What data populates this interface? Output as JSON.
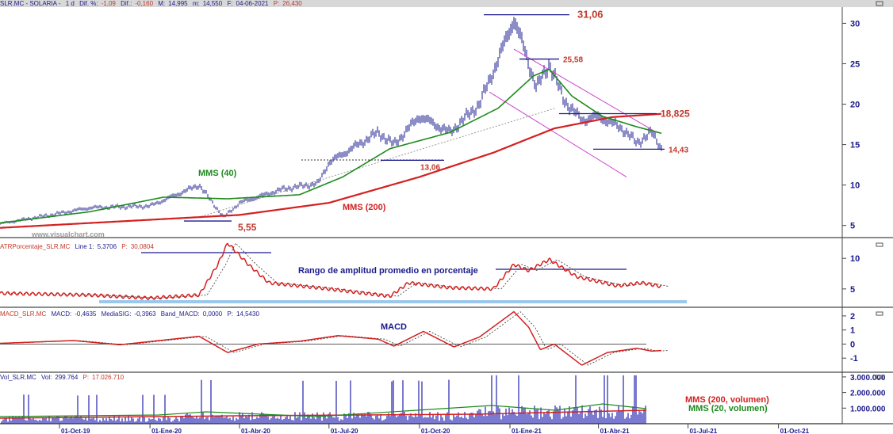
{
  "header": {
    "symbol": "SLR.MC - SOLARIA -",
    "period": "1 d",
    "dif_pct_label": "Dif. %:",
    "dif_pct": "-1,09",
    "dif_label": "Dif.:",
    "dif": "-0,160",
    "max_label": "M:",
    "max": "14,995",
    "min_label": "m:",
    "min": "14,550",
    "date_label": "F:",
    "date": "04-06-2021",
    "price_label": "P:",
    "price": "26,430"
  },
  "panels": {
    "atr": {
      "name": "ATRPorcentaje_SLR.MC",
      "line_label": "Line 1:",
      "line": "5,3706",
      "p_label": "P:",
      "p": "30,0804"
    },
    "macd": {
      "name": "MACD_SLR.MC",
      "macd_label": "MACD:",
      "macd": "-0,4635",
      "sig_label": "MediaSIG:",
      "sig": "-0,3963",
      "band_label": "Band_MACD:",
      "band": "0,0000",
      "p_label": "P:",
      "p": "14,5430"
    },
    "vol": {
      "name": "Vol_SLR.MC",
      "vol_label": "Vol:",
      "vol": "299.764",
      "p_label": "P:",
      "p": "17.026.710"
    }
  },
  "watermark": "www.visualchart.com",
  "colors": {
    "price": "#1a1a8c",
    "mms40": "#1e8a1e",
    "mms200": "#d42020",
    "annot": "#c0392b",
    "channel": "#cc44cc"
  },
  "chart_data": [
    {
      "type": "line",
      "title": "SOLARIA price",
      "ylim": [
        3.5,
        32
      ],
      "yticks": [
        "5",
        "10",
        "15",
        "20",
        "25",
        "30"
      ],
      "ytick_values": [
        5,
        10,
        15,
        20,
        25,
        30
      ],
      "xticks": [
        "01-Oct-19",
        "01-Ene-20",
        "01-Abr-20",
        "01-Jul-20",
        "01-Oct-20",
        "01-Ene-21",
        "01-Abr-21",
        "01-Jul-21",
        "01-Oct-21"
      ],
      "xtick_dates": [
        "2019-10-01",
        "2020-01-01",
        "2020-04-01",
        "2020-07-01",
        "2020-10-01",
        "2021-01-01",
        "2021-04-01",
        "2021-07-01",
        "2021-10-01"
      ],
      "price": [
        [
          "2019-08-01",
          5.2
        ],
        [
          "2019-10-01",
          6.5
        ],
        [
          "2019-11-01",
          7.2
        ],
        [
          "2020-01-01",
          7.4
        ],
        [
          "2020-02-20",
          10.0
        ],
        [
          "2020-03-16",
          6.0
        ],
        [
          "2020-04-01",
          7.8
        ],
        [
          "2020-05-15",
          9.5
        ],
        [
          "2020-06-20",
          10.2
        ],
        [
          "2020-07-01",
          12.8
        ],
        [
          "2020-08-20",
          16.5
        ],
        [
          "2020-09-05",
          15.0
        ],
        [
          "2020-10-01",
          18.5
        ],
        [
          "2020-11-01",
          16.5
        ],
        [
          "2020-12-01",
          20.0
        ],
        [
          "2020-12-20",
          25.5
        ],
        [
          "2021-01-05",
          30.5
        ],
        [
          "2021-01-15",
          27.0
        ],
        [
          "2021-01-28",
          22.0
        ],
        [
          "2021-02-10",
          25.0
        ],
        [
          "2021-02-25",
          20.5
        ],
        [
          "2021-03-15",
          18.0
        ],
        [
          "2021-04-01",
          18.5
        ],
        [
          "2021-04-25",
          17.0
        ],
        [
          "2021-05-10",
          15.2
        ],
        [
          "2021-05-25",
          16.5
        ],
        [
          "2021-06-04",
          14.6
        ]
      ],
      "mms40": [
        [
          "2019-08-01",
          5.3
        ],
        [
          "2019-11-01",
          6.7
        ],
        [
          "2020-01-15",
          8.5
        ],
        [
          "2020-03-20",
          8.3
        ],
        [
          "2020-06-01",
          8.8
        ],
        [
          "2020-07-15",
          11.0
        ],
        [
          "2020-09-01",
          14.5
        ],
        [
          "2020-11-01",
          16.5
        ],
        [
          "2020-12-20",
          19.5
        ],
        [
          "2021-01-25",
          23.5
        ],
        [
          "2021-02-10",
          24.3
        ],
        [
          "2021-03-05",
          21.0
        ],
        [
          "2021-04-05",
          18.5
        ],
        [
          "2021-05-10",
          17.2
        ],
        [
          "2021-06-04",
          16.4
        ]
      ],
      "mms200": [
        [
          "2019-08-01",
          4.7
        ],
        [
          "2019-12-01",
          5.5
        ],
        [
          "2020-04-01",
          6.3
        ],
        [
          "2020-07-01",
          7.8
        ],
        [
          "2020-10-01",
          11.0
        ],
        [
          "2020-12-15",
          14.0
        ],
        [
          "2021-02-15",
          17.0
        ],
        [
          "2021-04-15",
          18.4
        ],
        [
          "2021-06-04",
          18.8
        ]
      ],
      "levels": [
        {
          "label": "31,06",
          "value": 31.06
        },
        {
          "label": "25,58",
          "value": 25.58
        },
        {
          "label": "18,825",
          "value": 18.825
        },
        {
          "label": "14,43",
          "value": 14.43
        },
        {
          "label": "13,06",
          "value": 13.06
        },
        {
          "label": "5,55",
          "value": 5.55
        }
      ],
      "labels": {
        "mms40": "MMS (40)",
        "mms200": "MMS (200)"
      }
    },
    {
      "type": "line",
      "title": "Rango de amplitud promedio en porcentaje",
      "ylim": [
        2,
        13
      ],
      "yticks": [
        "5",
        "10"
      ],
      "ytick_values": [
        5,
        10
      ],
      "series": [
        [
          "2019-08-01",
          4.3
        ],
        [
          "2019-11-01",
          4.0
        ],
        [
          "2020-01-01",
          3.5
        ],
        [
          "2020-02-20",
          4.0
        ],
        [
          "2020-03-10",
          9.0
        ],
        [
          "2020-03-20",
          12.5
        ],
        [
          "2020-04-10",
          9.0
        ],
        [
          "2020-05-01",
          6.0
        ],
        [
          "2020-07-01",
          5.0
        ],
        [
          "2020-09-01",
          3.8
        ],
        [
          "2020-09-20",
          6.0
        ],
        [
          "2020-11-01",
          5.2
        ],
        [
          "2020-12-15",
          5.0
        ],
        [
          "2021-01-05",
          9.0
        ],
        [
          "2021-01-20",
          8.0
        ],
        [
          "2021-02-10",
          9.8
        ],
        [
          "2021-03-10",
          7.0
        ],
        [
          "2021-04-20",
          5.5
        ],
        [
          "2021-05-15",
          6.0
        ],
        [
          "2021-06-04",
          5.4
        ]
      ]
    },
    {
      "type": "line",
      "title": "MACD",
      "ylim": [
        -2,
        2.5
      ],
      "yticks": [
        "-1",
        "0",
        "1",
        "2"
      ],
      "ytick_values": [
        -1,
        0,
        1,
        2
      ],
      "series": [
        [
          "2019-08-01",
          0.05
        ],
        [
          "2019-10-15",
          0.25
        ],
        [
          "2019-12-01",
          -0.05
        ],
        [
          "2020-02-20",
          0.55
        ],
        [
          "2020-03-20",
          -0.6
        ],
        [
          "2020-04-20",
          0.0
        ],
        [
          "2020-06-01",
          0.2
        ],
        [
          "2020-07-10",
          0.6
        ],
        [
          "2020-08-20",
          0.35
        ],
        [
          "2020-09-05",
          -0.15
        ],
        [
          "2020-10-05",
          0.9
        ],
        [
          "2020-11-05",
          -0.2
        ],
        [
          "2020-12-01",
          0.5
        ],
        [
          "2021-01-05",
          2.3
        ],
        [
          "2021-01-20",
          1.2
        ],
        [
          "2021-02-01",
          -0.4
        ],
        [
          "2021-02-15",
          0.0
        ],
        [
          "2021-03-15",
          -1.5
        ],
        [
          "2021-04-10",
          -0.6
        ],
        [
          "2021-05-10",
          -0.3
        ],
        [
          "2021-05-25",
          -0.5
        ],
        [
          "2021-06-04",
          -0.46
        ]
      ]
    },
    {
      "type": "bar",
      "title": "Volumen",
      "ylim": [
        0,
        3300000
      ],
      "yticks": [
        "1.000.000",
        "2.000.000",
        "3.000.000"
      ],
      "ytick_values": [
        1000000,
        2000000,
        3000000
      ],
      "labels": {
        "mms200": "MMS (200, volumen)",
        "mms20": "MMS (20, volumen)"
      }
    }
  ]
}
